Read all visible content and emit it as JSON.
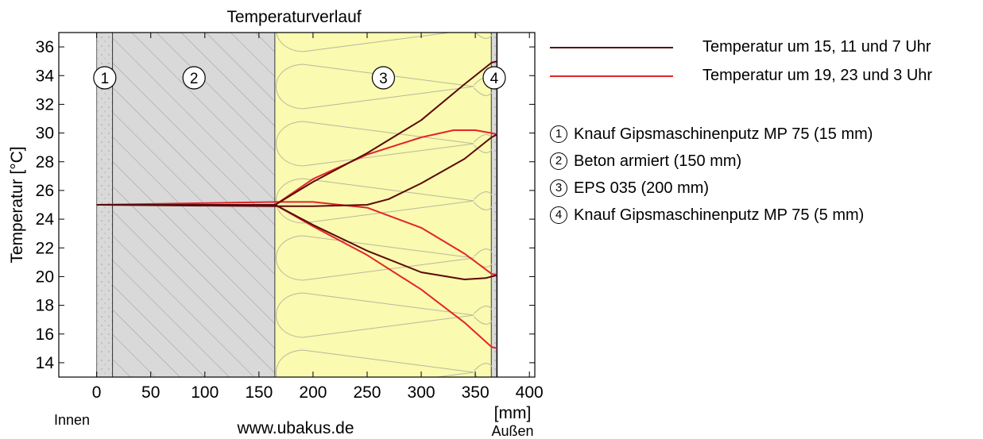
{
  "chart_data": {
    "type": "line",
    "title": "Temperaturverlauf",
    "xlabel": "[mm]",
    "ylabel": "Temperatur [°C]",
    "xlim": [
      -35,
      405
    ],
    "ylim": [
      13,
      37
    ],
    "x_ticks": [
      0,
      50,
      100,
      150,
      200,
      250,
      300,
      350,
      400
    ],
    "y_ticks": [
      14,
      16,
      18,
      20,
      22,
      24,
      26,
      28,
      30,
      32,
      34,
      36
    ],
    "grid": false,
    "legend_placement": "right",
    "inside_label": "Innen",
    "outside_label": "Außen",
    "watermark": "www.ubakus.de",
    "layers": [
      {
        "num": "1",
        "name": "Knauf Gipsmaschinenputz MP 75 (15 mm)",
        "from": 0,
        "to": 15,
        "color": "#d9d9d9"
      },
      {
        "num": "2",
        "name": "Beton armiert (150 mm)",
        "from": 15,
        "to": 165,
        "color": "#d9d9d9"
      },
      {
        "num": "3",
        "name": "EPS 035 (200 mm)",
        "from": 165,
        "to": 365,
        "color": "#fafab0"
      },
      {
        "num": "4",
        "name": "Knauf Gipsmaschinenputz MP 75 (5 mm)",
        "from": 365,
        "to": 370,
        "color": "#d9d9d9"
      }
    ],
    "series": [
      {
        "name": "Temperatur um 15, 11 und 7 Uhr",
        "color": "#5a0a0a",
        "lines": [
          {
            "x": [
              0,
              165,
              200,
              250,
              300,
              340,
              365,
              370
            ],
            "y": [
              25.0,
              25.0,
              26.6,
              28.6,
              30.9,
              33.4,
              34.9,
              35.0
            ]
          },
          {
            "x": [
              0,
              165,
              200,
              250,
              270,
              300,
              340,
              365,
              370
            ],
            "y": [
              25.0,
              24.9,
              24.9,
              25.0,
              25.4,
              26.5,
              28.2,
              29.7,
              29.9
            ]
          },
          {
            "x": [
              0,
              165,
              200,
              250,
              300,
              340,
              360,
              370
            ],
            "y": [
              25.0,
              25.0,
              23.6,
              21.8,
              20.3,
              19.8,
              19.9,
              20.1
            ]
          }
        ]
      },
      {
        "name": "Temperatur um 19, 23 und 3 Uhr",
        "color": "#e3242b",
        "lines": [
          {
            "x": [
              0,
              165,
              200,
              250,
              300,
              330,
              350,
              365,
              370
            ],
            "y": [
              25.0,
              25.0,
              26.8,
              28.5,
              29.7,
              30.2,
              30.2,
              30.0,
              29.9
            ]
          },
          {
            "x": [
              0,
              165,
              200,
              250,
              300,
              340,
              365,
              370
            ],
            "y": [
              25.0,
              25.2,
              25.2,
              24.8,
              23.4,
              21.6,
              20.2,
              20.1
            ]
          },
          {
            "x": [
              0,
              165,
              200,
              250,
              300,
              340,
              365,
              370
            ],
            "y": [
              25.0,
              25.0,
              23.5,
              21.5,
              19.1,
              16.8,
              15.1,
              15.0
            ]
          }
        ]
      }
    ]
  }
}
